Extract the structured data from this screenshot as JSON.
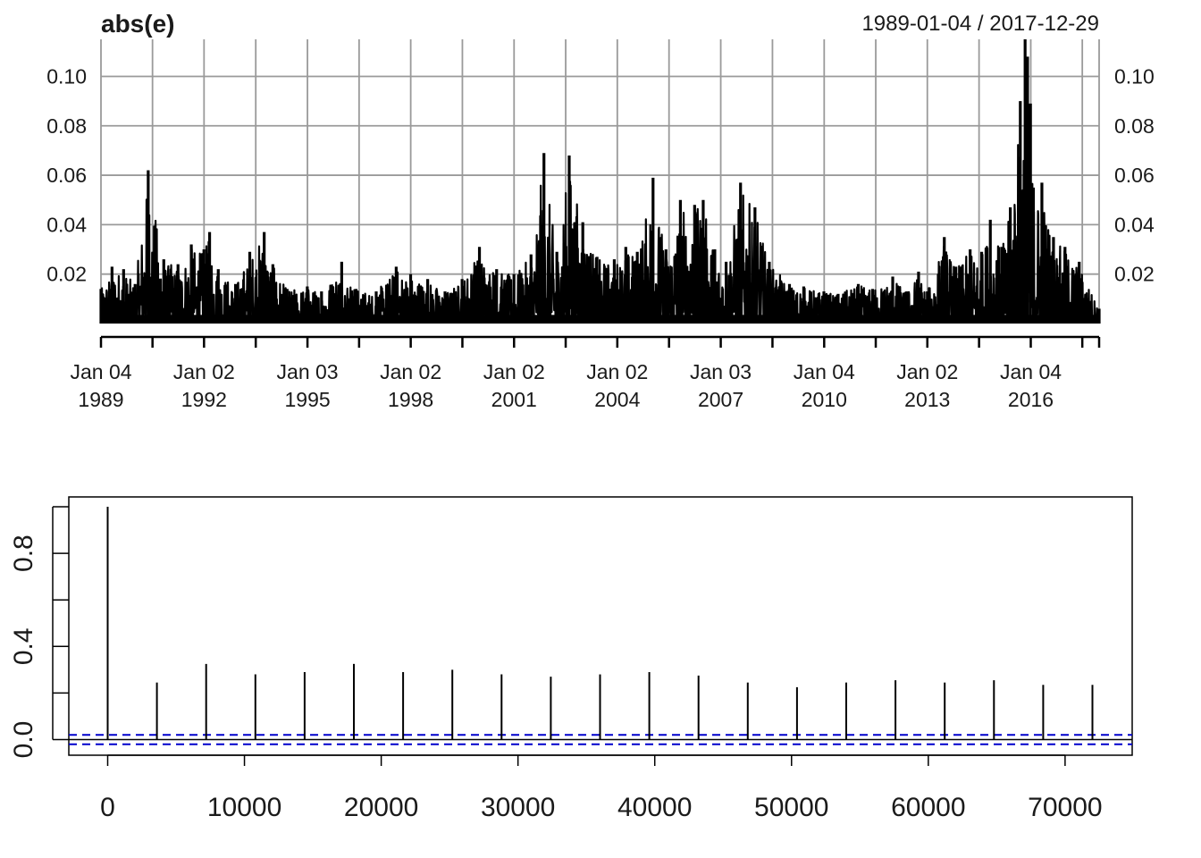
{
  "chart_data": [
    {
      "type": "line",
      "title": "abs(e)",
      "subtitle": "1989-01-04 / 2017-12-29",
      "ylim": [
        0,
        0.115
      ],
      "y_ticks": [
        0.02,
        0.04,
        0.06,
        0.08,
        0.1
      ],
      "y_tick_labels": [
        "0.02",
        "0.04",
        "0.06",
        "0.08",
        "0.10"
      ],
      "x_range": [
        "1989-01-04",
        "2017-12-29"
      ],
      "x_ticks": [
        {
          "date": "1989-01-04",
          "line1": "Jan 04",
          "line2": "1989"
        },
        {
          "date": "1992-01-02",
          "line1": "Jan 02",
          "line2": "1992"
        },
        {
          "date": "1995-01-03",
          "line1": "Jan 03",
          "line2": "1995"
        },
        {
          "date": "1998-01-02",
          "line1": "Jan 02",
          "line2": "1998"
        },
        {
          "date": "2001-01-02",
          "line1": "Jan 02",
          "line2": "2001"
        },
        {
          "date": "2004-01-02",
          "line1": "Jan 02",
          "line2": "2004"
        },
        {
          "date": "2007-01-03",
          "line1": "Jan 03",
          "line2": "2007"
        },
        {
          "date": "2010-01-04",
          "line1": "Jan 04",
          "line2": "2010"
        },
        {
          "date": "2013-01-02",
          "line1": "Jan 02",
          "line2": "2013"
        },
        {
          "date": "2016-01-04",
          "line1": "Jan 04",
          "line2": "2016"
        }
      ],
      "grid": true,
      "series": [
        {
          "points": [
            [
              "1989-01-04",
              0.014
            ],
            [
              "1989-05-01",
              0.023
            ],
            [
              "1989-09-01",
              0.022
            ],
            [
              "1990-01-01",
              0.016
            ],
            [
              "1990-05-20",
              0.062
            ],
            [
              "1990-11-01",
              0.026
            ],
            [
              "1991-04-01",
              0.024
            ],
            [
              "1991-08-20",
              0.032
            ],
            [
              "1992-01-01",
              0.03
            ],
            [
              "1992-03-01",
              0.037
            ],
            [
              "1992-06-01",
              0.022
            ],
            [
              "1992-12-01",
              0.016
            ],
            [
              "1993-05-01",
              0.029
            ],
            [
              "1993-10-01",
              0.037
            ],
            [
              "1994-01-01",
              0.024
            ],
            [
              "1994-06-01",
              0.014
            ],
            [
              "1995-01-01",
              0.015
            ],
            [
              "1995-06-01",
              0.013
            ],
            [
              "1996-01-01",
              0.025
            ],
            [
              "1996-06-01",
              0.014
            ],
            [
              "1997-01-01",
              0.013
            ],
            [
              "1997-08-01",
              0.023
            ],
            [
              "1998-01-01",
              0.02
            ],
            [
              "1998-07-01",
              0.018
            ],
            [
              "1999-01-01",
              0.013
            ],
            [
              "1999-07-01",
              0.018
            ],
            [
              "2000-01-01",
              0.031
            ],
            [
              "2000-07-01",
              0.022
            ],
            [
              "2001-01-01",
              0.02
            ],
            [
              "2001-07-01",
              0.028
            ],
            [
              "2001-11-15",
              0.069
            ],
            [
              "2002-04-01",
              0.029
            ],
            [
              "2002-08-10",
              0.068
            ],
            [
              "2003-01-01",
              0.041
            ],
            [
              "2003-06-01",
              0.027
            ],
            [
              "2003-12-01",
              0.026
            ],
            [
              "2004-04-01",
              0.031
            ],
            [
              "2004-08-01",
              0.029
            ],
            [
              "2005-01-15",
              0.059
            ],
            [
              "2005-06-01",
              0.03
            ],
            [
              "2005-11-01",
              0.05
            ],
            [
              "2006-04-01",
              0.048
            ],
            [
              "2006-07-01",
              0.05
            ],
            [
              "2006-11-01",
              0.03
            ],
            [
              "2007-03-01",
              0.025
            ],
            [
              "2007-08-01",
              0.057
            ],
            [
              "2008-01-01",
              0.047
            ],
            [
              "2008-06-01",
              0.025
            ],
            [
              "2009-01-01",
              0.016
            ],
            [
              "2009-06-01",
              0.015
            ],
            [
              "2010-01-01",
              0.013
            ],
            [
              "2010-06-01",
              0.012
            ],
            [
              "2011-01-01",
              0.016
            ],
            [
              "2011-06-01",
              0.014
            ],
            [
              "2012-01-01",
              0.019
            ],
            [
              "2012-06-01",
              0.013
            ],
            [
              "2012-10-01",
              0.021
            ],
            [
              "2013-01-02",
              0.013
            ],
            [
              "2013-07-01",
              0.035
            ],
            [
              "2013-11-01",
              0.023
            ],
            [
              "2014-04-01",
              0.03
            ],
            [
              "2014-08-01",
              0.029
            ],
            [
              "2014-11-01",
              0.042
            ],
            [
              "2015-03-01",
              0.031
            ],
            [
              "2015-06-01",
              0.047
            ],
            [
              "2015-09-15",
              0.09
            ],
            [
              "2015-11-05",
              0.115
            ],
            [
              "2015-12-01",
              0.108
            ],
            [
              "2016-01-01",
              0.089
            ],
            [
              "2016-02-01",
              0.055
            ],
            [
              "2016-05-01",
              0.057
            ],
            [
              "2016-09-01",
              0.035
            ],
            [
              "2017-01-01",
              0.031
            ],
            [
              "2017-06-01",
              0.025
            ],
            [
              "2017-12-29",
              0.006
            ]
          ]
        }
      ]
    },
    {
      "type": "bar",
      "title": "",
      "xlabel": "",
      "ylabel": "",
      "xlim": [
        0,
        72000
      ],
      "ylim": [
        0,
        1
      ],
      "x_ticks": [
        0,
        10000,
        20000,
        30000,
        40000,
        50000,
        60000,
        70000
      ],
      "x_tick_labels": [
        "0",
        "10000",
        "20000",
        "30000",
        "40000",
        "50000",
        "60000",
        "70000"
      ],
      "y_ticks": [
        0,
        0.2,
        0.4,
        0.6,
        0.8,
        1.0
      ],
      "y_tick_labels": [
        "0.0",
        "0.4",
        "0.8"
      ],
      "y_tick_labeled": [
        0,
        0.4,
        0.8
      ],
      "lags": [
        0,
        3600,
        7200,
        10800,
        14400,
        18000,
        21600,
        25200,
        28800,
        32400,
        36000,
        39600,
        43200,
        46800,
        50400,
        54000,
        57600,
        61200,
        64800,
        68400,
        72000
      ],
      "values": [
        1.0,
        0.245,
        0.325,
        0.28,
        0.29,
        0.325,
        0.29,
        0.3,
        0.28,
        0.27,
        0.28,
        0.29,
        0.275,
        0.245,
        0.225,
        0.245,
        0.255,
        0.245,
        0.255,
        0.235,
        0.235
      ],
      "confidence_band": [
        -0.02,
        0.02
      ],
      "colors": {
        "bars": "#000000",
        "confidence": "#0000cc"
      }
    }
  ]
}
